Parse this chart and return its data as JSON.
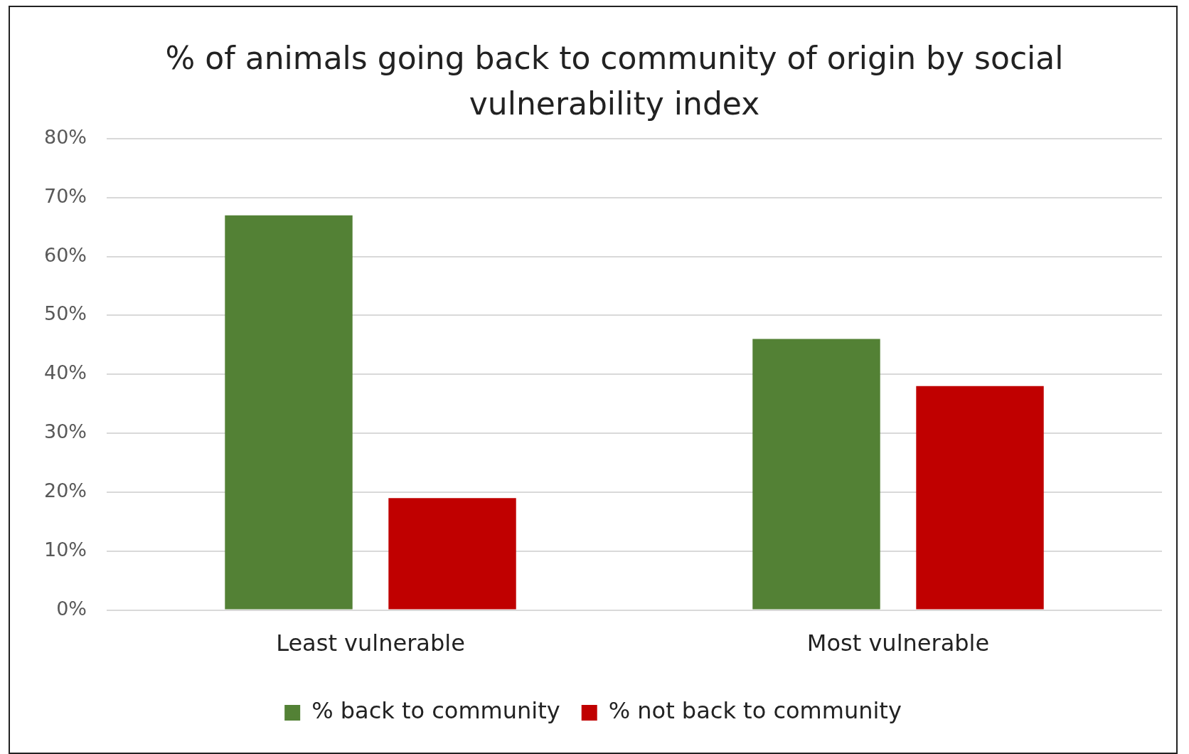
{
  "chart_data": {
    "type": "bar",
    "title": "% of animals going back to community of origin by social vulnerability index",
    "categories": [
      "Least vulnerable",
      "Most vulnerable"
    ],
    "series": [
      {
        "name": "% back to community",
        "color": "#538135",
        "values": [
          67,
          46
        ]
      },
      {
        "name": "% not back to community",
        "color": "#c00000",
        "values": [
          19,
          38
        ]
      }
    ],
    "ylim": [
      0,
      80
    ],
    "yticks": [
      {
        "value": 0,
        "label": "0%"
      },
      {
        "value": 10,
        "label": "10%"
      },
      {
        "value": 20,
        "label": "20%"
      },
      {
        "value": 30,
        "label": "30%"
      },
      {
        "value": 40,
        "label": "40%"
      },
      {
        "value": 50,
        "label": "50%"
      },
      {
        "value": 60,
        "label": "60%"
      },
      {
        "value": 70,
        "label": "70%"
      },
      {
        "value": 80,
        "label": "80%"
      }
    ],
    "grid": "y",
    "legend": "bottom"
  }
}
